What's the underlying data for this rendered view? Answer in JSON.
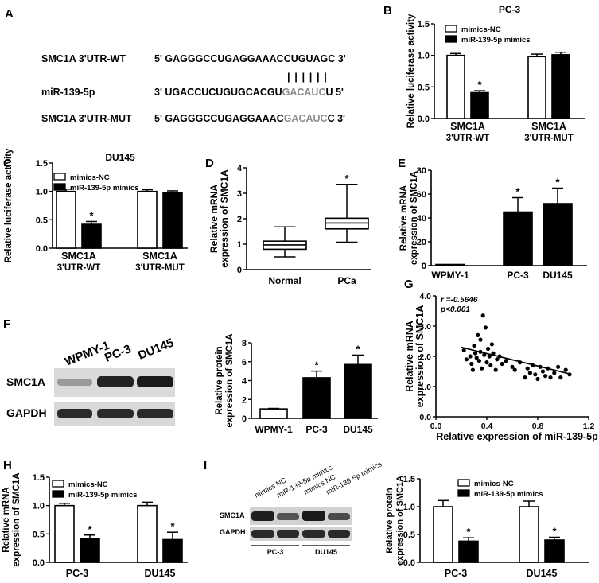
{
  "panel_letters": [
    "A",
    "B",
    "C",
    "D",
    "E",
    "F",
    "G",
    "H",
    "I"
  ],
  "panel_a": {
    "rows": [
      {
        "label": "SMC1A 3'UTR-WT",
        "seq_pre": "5' GAGGGCCUGAGGAAACCUGUAGC 3'",
        "seq_gray": "",
        "seq_post": ""
      },
      {
        "label": "miR-139-5p",
        "seq_pre": "3' UGACCUCUGUGCACGU",
        "seq_gray": "GACAUC",
        "seq_post": "U 5'"
      },
      {
        "label": "SMC1A 3'UTR-MUT",
        "seq_pre": "5' GAGGGCCUGAGGAAAC",
        "seq_gray": "GACAUC",
        "seq_post": "C 3'"
      }
    ],
    "pair_lines": "| | | | | |"
  },
  "colors": {
    "gray_seq": "#8c8c8c",
    "bar_black": "#000000",
    "bar_white": "#ffffff"
  },
  "western_f": {
    "lanes": [
      "WPMY-1",
      "PC-3",
      "DU145"
    ],
    "rows": [
      "SMC1A",
      "GAPDH"
    ]
  },
  "western_i": {
    "lanes": [
      "mimics NC",
      "miR-139-5p mimics",
      "mimics NC",
      "miR-139-5p mimics"
    ],
    "rows": [
      "SMC1A",
      "GAPDH"
    ],
    "groups": [
      "PC-3",
      "DU145"
    ]
  },
  "chart_data": [
    {
      "id": "B",
      "type": "bar",
      "title": "PC-3",
      "ylabel": "Relative luciferase activity",
      "xlabel": "",
      "ylim": [
        0,
        1.5
      ],
      "yticks": [
        0.0,
        0.5,
        1.0,
        1.5
      ],
      "categories": [
        [
          "SMC1A",
          "3'UTR-WT"
        ],
        [
          "SMC1A",
          "3'UTR-MUT"
        ]
      ],
      "series": [
        {
          "name": "mimics-NC",
          "values": [
            1.0,
            0.98
          ],
          "errors": [
            0.03,
            0.04
          ]
        },
        {
          "name": "miR-139-5p mimics",
          "values": [
            0.41,
            1.01
          ],
          "errors": [
            0.03,
            0.04
          ]
        }
      ],
      "stars": [
        [
          null,
          "*"
        ],
        [
          null,
          null
        ]
      ],
      "legend": "top-left"
    },
    {
      "id": "C",
      "type": "bar",
      "title": "DU145",
      "ylabel": "Relative luciferase activity",
      "xlabel": "",
      "ylim": [
        0,
        1.5
      ],
      "yticks": [
        0.0,
        0.5,
        1.0,
        1.5
      ],
      "categories": [
        [
          "SMC1A",
          "3'UTR-WT"
        ],
        [
          "SMC1A",
          "3'UTR-MUT"
        ]
      ],
      "series": [
        {
          "name": "mimics-NC",
          "values": [
            1.0,
            1.0
          ],
          "errors": [
            0.04,
            0.03
          ]
        },
        {
          "name": "miR-139-5p mimics",
          "values": [
            0.42,
            0.98
          ],
          "errors": [
            0.05,
            0.03
          ]
        }
      ],
      "stars": [
        [
          null,
          "*"
        ],
        [
          null,
          null
        ]
      ],
      "legend": "top-left"
    },
    {
      "id": "D",
      "type": "box",
      "title": "",
      "ylabel": "Relative mRNA expression of SMC1A",
      "xlabel": "",
      "ylim": [
        0,
        4
      ],
      "yticks": [
        0,
        1,
        2,
        3,
        4
      ],
      "categories": [
        "Normal",
        "PCa"
      ],
      "boxes": [
        {
          "min": 0.5,
          "q1": 0.8,
          "median": 0.97,
          "q3": 1.12,
          "max": 1.68
        },
        {
          "min": 1.08,
          "q1": 1.6,
          "median": 1.83,
          "q3": 2.02,
          "max": 3.35
        }
      ],
      "stars": [
        null,
        "*"
      ]
    },
    {
      "id": "E",
      "type": "bar",
      "title": "",
      "ylabel": "Relative mRNA expression of SMC1A",
      "xlabel": "",
      "ylim": [
        0,
        80
      ],
      "yticks": [
        0,
        20,
        40,
        60,
        80
      ],
      "categories": [
        "WPMY-1",
        "PC-3",
        "DU145"
      ],
      "values": [
        1,
        45,
        52
      ],
      "errors": [
        0,
        12,
        13
      ],
      "stars": [
        null,
        "*",
        "*"
      ]
    },
    {
      "id": "F",
      "type": "bar",
      "title": "",
      "ylabel": "Relative protein expression of SMC1A",
      "xlabel": "",
      "ylim": [
        0,
        8
      ],
      "yticks": [
        0,
        2,
        4,
        6,
        8
      ],
      "categories": [
        "WPMY-1",
        "PC-3",
        "DU145"
      ],
      "values": [
        1.0,
        4.3,
        5.7
      ],
      "errors": [
        0.05,
        0.7,
        1.0
      ],
      "stars": [
        null,
        "*",
        "*"
      ]
    },
    {
      "id": "G",
      "type": "scatter",
      "title": "",
      "ylabel": "Relative mRNA expression of SMC1A",
      "xlabel": "Relative expression of miR-139-5p",
      "xlim": [
        0,
        1.2
      ],
      "ylim": [
        0,
        4
      ],
      "xticks": [
        0.0,
        0.4,
        0.8,
        1.2
      ],
      "yticks": [
        0,
        1,
        2,
        3,
        4
      ],
      "annotations": [
        "r =-0.5646",
        "p<0.001"
      ],
      "regression": {
        "x": [
          0.2,
          1.05
        ],
        "y": [
          2.3,
          1.42
        ]
      },
      "points": [
        [
          0.22,
          2.2
        ],
        [
          0.24,
          1.9
        ],
        [
          0.27,
          2.0
        ],
        [
          0.28,
          1.75
        ],
        [
          0.29,
          1.55
        ],
        [
          0.3,
          2.35
        ],
        [
          0.31,
          2.1
        ],
        [
          0.32,
          1.95
        ],
        [
          0.33,
          2.7
        ],
        [
          0.34,
          1.85
        ],
        [
          0.35,
          2.55
        ],
        [
          0.35,
          2.15
        ],
        [
          0.36,
          1.6
        ],
        [
          0.37,
          3.35
        ],
        [
          0.38,
          2.05
        ],
        [
          0.39,
          2.95
        ],
        [
          0.4,
          1.8
        ],
        [
          0.41,
          2.25
        ],
        [
          0.42,
          2.0
        ],
        [
          0.43,
          1.7
        ],
        [
          0.44,
          2.4
        ],
        [
          0.45,
          2.1
        ],
        [
          0.47,
          1.55
        ],
        [
          0.48,
          1.9
        ],
        [
          0.5,
          2.0
        ],
        [
          0.52,
          1.75
        ],
        [
          0.55,
          1.85
        ],
        [
          0.6,
          1.65
        ],
        [
          0.62,
          1.55
        ],
        [
          0.66,
          1.8
        ],
        [
          0.7,
          1.3
        ],
        [
          0.72,
          1.6
        ],
        [
          0.74,
          1.45
        ],
        [
          0.76,
          1.7
        ],
        [
          0.78,
          1.4
        ],
        [
          0.8,
          1.25
        ],
        [
          0.82,
          1.65
        ],
        [
          0.84,
          1.5
        ],
        [
          0.86,
          1.35
        ],
        [
          0.88,
          1.6
        ],
        [
          0.9,
          1.3
        ],
        [
          0.93,
          1.45
        ],
        [
          0.96,
          1.65
        ],
        [
          0.98,
          1.3
        ],
        [
          1.02,
          1.55
        ],
        [
          1.05,
          1.4
        ]
      ]
    },
    {
      "id": "H",
      "type": "bar",
      "title": "",
      "ylabel": "Relative mRNA expression of SMC1A",
      "xlabel": "",
      "ylim": [
        0,
        1.5
      ],
      "yticks": [
        0.0,
        0.5,
        1.0,
        1.5
      ],
      "categories": [
        "PC-3",
        "DU145"
      ],
      "series": [
        {
          "name": "mimics-NC",
          "values": [
            1.0,
            1.0
          ],
          "errors": [
            0.04,
            0.06
          ]
        },
        {
          "name": "miR-139-5p mimics",
          "values": [
            0.41,
            0.4
          ],
          "errors": [
            0.07,
            0.13
          ]
        }
      ],
      "stars": [
        [
          null,
          "*"
        ],
        [
          null,
          "*"
        ]
      ],
      "legend": "top-left"
    },
    {
      "id": "I",
      "type": "bar",
      "title": "",
      "ylabel": "Relative protein expression of SMC1A",
      "xlabel": "",
      "ylim": [
        0,
        1.5
      ],
      "yticks": [
        0.0,
        0.5,
        1.0,
        1.5
      ],
      "categories": [
        "PC-3",
        "DU145"
      ],
      "series": [
        {
          "name": "mimics-NC",
          "values": [
            1.0,
            1.0
          ],
          "errors": [
            0.11,
            0.1
          ]
        },
        {
          "name": "miR-139-5p mimics",
          "values": [
            0.38,
            0.4
          ],
          "errors": [
            0.06,
            0.05
          ]
        }
      ],
      "stars": [
        [
          null,
          "*"
        ],
        [
          null,
          "*"
        ]
      ],
      "legend": "top-left"
    }
  ]
}
